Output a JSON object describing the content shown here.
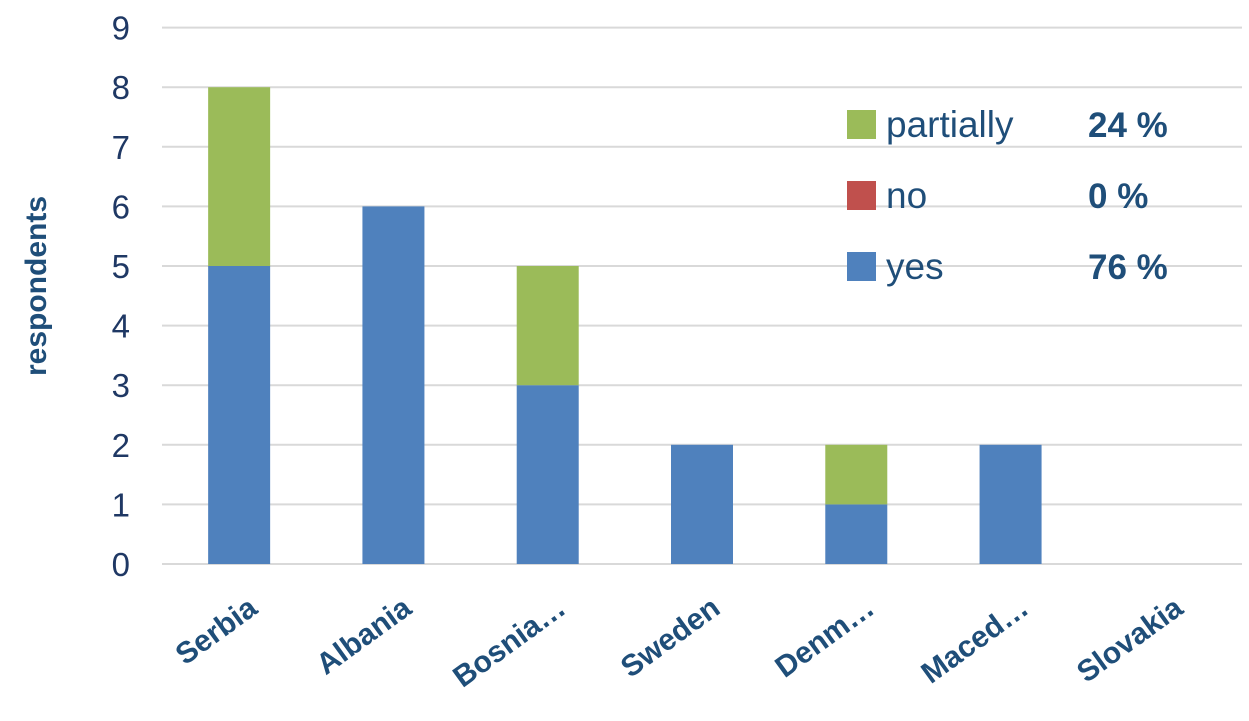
{
  "chart_data": {
    "type": "bar",
    "stacked": true,
    "title": "",
    "xlabel": "",
    "ylabel": "respondents",
    "ylim": [
      0,
      9
    ],
    "yticks": [
      0,
      1,
      2,
      3,
      4,
      5,
      6,
      7,
      8,
      9
    ],
    "grid": true,
    "legend_position": "top-right",
    "categories": [
      "Serbia",
      "Albania",
      "Bosnia…",
      "Sweden",
      "Denm…",
      "Maced…",
      "Slovakia"
    ],
    "series": [
      {
        "name": "yes",
        "values": [
          5,
          6,
          3,
          2,
          1,
          2,
          0
        ],
        "color": "#4f81bd",
        "percent": "76 %"
      },
      {
        "name": "no",
        "values": [
          0,
          0,
          0,
          0,
          0,
          0,
          0
        ],
        "color": "#c0504d",
        "percent": "0 %"
      },
      {
        "name": "partially",
        "values": [
          3,
          0,
          2,
          0,
          1,
          0,
          0
        ],
        "color": "#9bbb59",
        "percent": "24 %"
      }
    ],
    "legend_order": [
      "partially",
      "no",
      "yes"
    ]
  }
}
